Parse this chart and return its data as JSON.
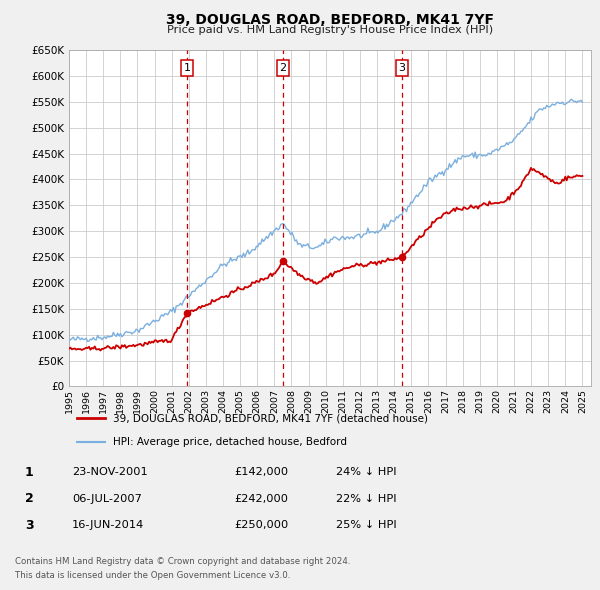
{
  "title": "39, DOUGLAS ROAD, BEDFORD, MK41 7YF",
  "subtitle": "Price paid vs. HM Land Registry's House Price Index (HPI)",
  "ylim": [
    0,
    650000
  ],
  "yticks": [
    0,
    50000,
    100000,
    150000,
    200000,
    250000,
    300000,
    350000,
    400000,
    450000,
    500000,
    550000,
    600000,
    650000
  ],
  "ytick_labels": [
    "£0",
    "£50K",
    "£100K",
    "£150K",
    "£200K",
    "£250K",
    "£300K",
    "£350K",
    "£400K",
    "£450K",
    "£500K",
    "£550K",
    "£600K",
    "£650K"
  ],
  "xlim_start": 1995.0,
  "xlim_end": 2025.5,
  "xticks": [
    1995,
    1996,
    1997,
    1998,
    1999,
    2000,
    2001,
    2002,
    2003,
    2004,
    2005,
    2006,
    2007,
    2008,
    2009,
    2010,
    2011,
    2012,
    2013,
    2014,
    2015,
    2016,
    2017,
    2018,
    2019,
    2020,
    2021,
    2022,
    2023,
    2024,
    2025
  ],
  "bg_color": "#f0f0f0",
  "plot_bg_color": "#ffffff",
  "grid_color": "#cccccc",
  "red_line_color": "#cc0000",
  "blue_line_color": "#7aafdf",
  "dashed_vline_color": "#cc0000",
  "sale_points": [
    {
      "year": 2001.9,
      "value": 142000,
      "label": "1"
    },
    {
      "year": 2007.5,
      "value": 242000,
      "label": "2"
    },
    {
      "year": 2014.45,
      "value": 250000,
      "label": "3"
    }
  ],
  "legend_entries": [
    {
      "label": "39, DOUGLAS ROAD, BEDFORD, MK41 7YF (detached house)",
      "color": "#cc0000",
      "lw": 2
    },
    {
      "label": "HPI: Average price, detached house, Bedford",
      "color": "#7aafdf",
      "lw": 1.5
    }
  ],
  "table_data": [
    {
      "num": "1",
      "date": "23-NOV-2001",
      "price": "£142,000",
      "hpi": "24% ↓ HPI"
    },
    {
      "num": "2",
      "date": "06-JUL-2007",
      "price": "£242,000",
      "hpi": "22% ↓ HPI"
    },
    {
      "num": "3",
      "date": "16-JUN-2014",
      "price": "£250,000",
      "hpi": "25% ↓ HPI"
    }
  ],
  "footnote1": "Contains HM Land Registry data © Crown copyright and database right 2024.",
  "footnote2": "This data is licensed under the Open Government Licence v3.0.",
  "hpi_anchors": [
    [
      1995.0,
      90000
    ],
    [
      1997.0,
      95000
    ],
    [
      1999.0,
      108000
    ],
    [
      2001.0,
      145000
    ],
    [
      2002.5,
      190000
    ],
    [
      2004.0,
      235000
    ],
    [
      2005.5,
      258000
    ],
    [
      2007.5,
      315000
    ],
    [
      2008.5,
      272000
    ],
    [
      2009.5,
      268000
    ],
    [
      2010.5,
      287000
    ],
    [
      2011.5,
      288000
    ],
    [
      2013.0,
      298000
    ],
    [
      2014.5,
      335000
    ],
    [
      2016.0,
      395000
    ],
    [
      2018.0,
      445000
    ],
    [
      2019.5,
      448000
    ],
    [
      2021.0,
      475000
    ],
    [
      2022.5,
      535000
    ],
    [
      2023.5,
      548000
    ],
    [
      2024.8,
      552000
    ]
  ],
  "pp_anchors": [
    [
      1995.0,
      72000
    ],
    [
      1996.0,
      72000
    ],
    [
      1997.5,
      75000
    ],
    [
      1999.0,
      80000
    ],
    [
      2000.0,
      85000
    ],
    [
      2001.0,
      90000
    ],
    [
      2001.9,
      142000
    ],
    [
      2003.0,
      158000
    ],
    [
      2005.0,
      188000
    ],
    [
      2006.0,
      202000
    ],
    [
      2007.0,
      218000
    ],
    [
      2007.5,
      242000
    ],
    [
      2008.5,
      215000
    ],
    [
      2009.5,
      200000
    ],
    [
      2010.5,
      220000
    ],
    [
      2011.5,
      232000
    ],
    [
      2012.5,
      237000
    ],
    [
      2013.5,
      242000
    ],
    [
      2014.45,
      250000
    ],
    [
      2015.5,
      288000
    ],
    [
      2016.5,
      323000
    ],
    [
      2017.5,
      342000
    ],
    [
      2018.5,
      347000
    ],
    [
      2019.5,
      352000
    ],
    [
      2020.5,
      358000
    ],
    [
      2021.5,
      393000
    ],
    [
      2022.0,
      422000
    ],
    [
      2022.5,
      412000
    ],
    [
      2023.0,
      402000
    ],
    [
      2023.5,
      392000
    ],
    [
      2024.0,
      402000
    ],
    [
      2024.8,
      407000
    ]
  ]
}
